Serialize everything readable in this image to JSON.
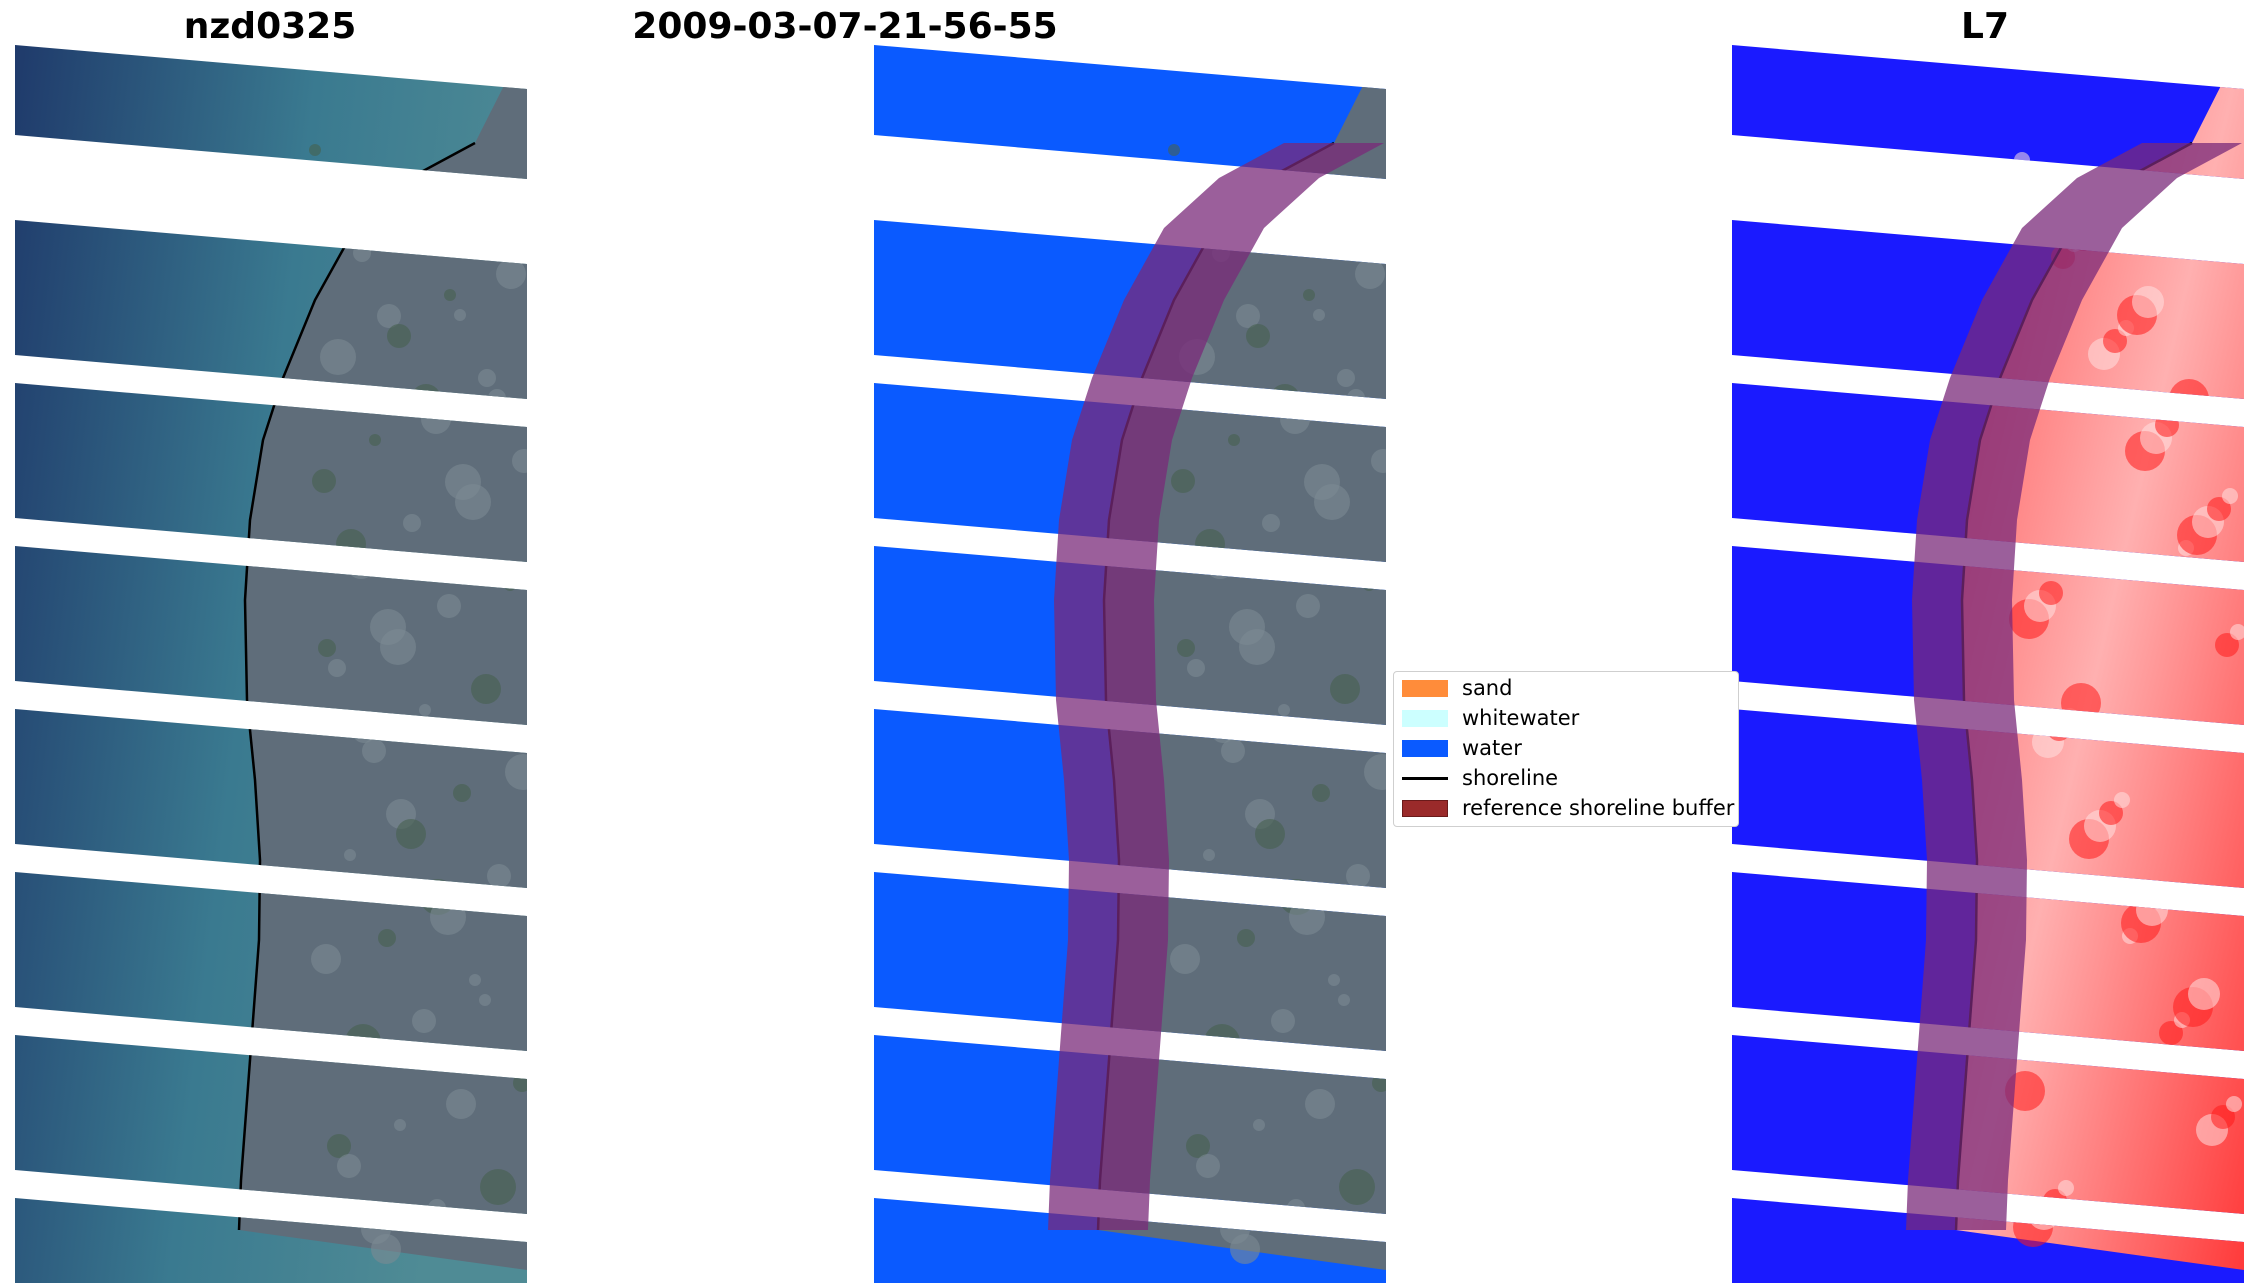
{
  "panels": [
    {
      "title": "nzd0325",
      "style": "rgb"
    },
    {
      "title": "2009-03-07-21-56-55",
      "style": "classified"
    },
    {
      "title": "L7",
      "style": "mndwi"
    }
  ],
  "legend": {
    "items": [
      {
        "label": "sand",
        "color": "#ff8c3a",
        "kind": "patch"
      },
      {
        "label": "whitewater",
        "color": "#ccffff",
        "kind": "patch"
      },
      {
        "label": "water",
        "color": "#0a5aff",
        "kind": "patch"
      },
      {
        "label": "shoreline",
        "color": "#000000",
        "kind": "line"
      },
      {
        "label": "reference shoreline buffer",
        "color": "#9a2a2a",
        "kind": "patch"
      }
    ]
  },
  "colors": {
    "sea_deep": "#1f3a6b",
    "sea_shallow": "#3a7a90",
    "urban": "#5f6d7a",
    "class_water": "#0a5aff",
    "buffer_overlay": "#7a2a7a",
    "index_water": "#1a1aff",
    "index_land": "#ff3030"
  }
}
